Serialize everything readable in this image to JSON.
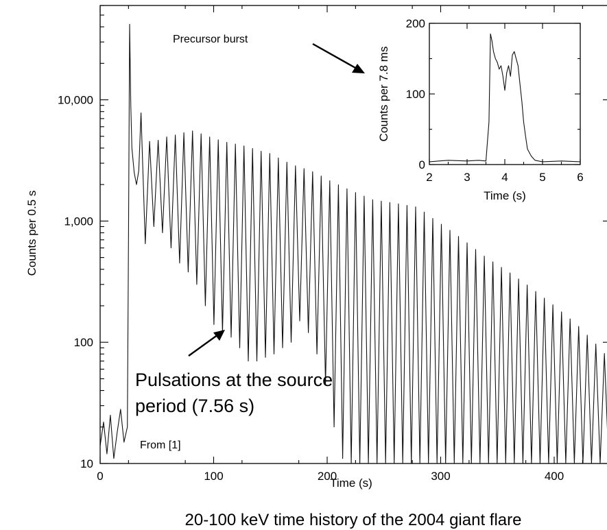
{
  "chart_data": [
    {
      "type": "line",
      "title": "",
      "xlabel": "Time (s)",
      "ylabel": "Counts per 0.5 s",
      "xlim": [
        0,
        450
      ],
      "ylim": [
        10,
        60000
      ],
      "yscale": "log",
      "grid": false,
      "x_ticks": [
        0,
        100,
        200,
        300,
        400
      ],
      "x_tick_labels": [
        "0",
        "100",
        "200",
        "300",
        "400"
      ],
      "y_ticks": [
        10,
        100,
        1000,
        10000
      ],
      "y_tick_labels": [
        "10",
        "100",
        "1,000",
        "10,000"
      ],
      "series": [
        {
          "x": [
            0,
            3,
            6,
            9,
            12,
            15,
            18,
            21,
            24,
            25,
            26,
            27,
            28,
            30,
            32,
            34,
            36,
            38,
            40,
            45,
            50,
            60,
            70,
            80,
            90,
            100,
            110,
            120,
            130,
            140,
            150,
            160,
            170,
            180,
            190,
            200,
            220,
            240,
            260,
            280,
            290,
            300,
            320,
            340,
            360,
            380,
            400,
            420,
            440,
            450
          ],
          "y": [
            14,
            22,
            12,
            25,
            11,
            18,
            28,
            15,
            20,
            800,
            42000,
            9000,
            4000,
            2500,
            2000,
            2600,
            7800,
            2000,
            4400,
            4600,
            4600,
            5000,
            5200,
            5600,
            5200,
            4800,
            4500,
            4300,
            4100,
            3800,
            3600,
            3200,
            2900,
            2700,
            2500,
            2200,
            1800,
            1500,
            1400,
            1300,
            1100,
            950,
            700,
            500,
            380,
            280,
            200,
            140,
            90,
            70
          ],
          "troughs_y": [
            650,
            900,
            800,
            600,
            450,
            380,
            300,
            200,
            140,
            120,
            110,
            90,
            70,
            70,
            75,
            80,
            90,
            100,
            150,
            120,
            80,
            45,
            20,
            11,
            10,
            10,
            10,
            10,
            10,
            10,
            10,
            10,
            10,
            10
          ]
        }
      ],
      "annotations": [
        {
          "text_lines": [
            "Pulsations at the source",
            "period (7.56 s)"
          ],
          "points_to_x": 110,
          "points_to_y": 130
        },
        {
          "text": "From [1]"
        }
      ]
    },
    {
      "type": "line",
      "title": "",
      "xlabel": "Time (s)",
      "ylabel": "Counts per 7.8 ms",
      "xlim": [
        2,
        6
      ],
      "ylim": [
        0,
        200
      ],
      "grid": false,
      "x_ticks": [
        2,
        3,
        4,
        5,
        6
      ],
      "x_tick_labels": [
        "2",
        "3",
        "4",
        "5",
        "6"
      ],
      "y_ticks": [
        0,
        100,
        200
      ],
      "y_tick_labels": [
        "0",
        "100",
        "200"
      ],
      "series": [
        {
          "x": [
            2.0,
            2.5,
            3.0,
            3.3,
            3.5,
            3.58,
            3.62,
            3.66,
            3.7,
            3.75,
            3.8,
            3.85,
            3.9,
            3.95,
            4.0,
            4.05,
            4.1,
            4.15,
            4.2,
            4.25,
            4.3,
            4.35,
            4.4,
            4.45,
            4.5,
            4.55,
            4.6,
            4.7,
            4.8,
            5.0,
            5.5,
            6.0
          ],
          "y": [
            4,
            6,
            5,
            6,
            5,
            60,
            185,
            175,
            160,
            150,
            145,
            135,
            140,
            125,
            105,
            130,
            140,
            125,
            155,
            160,
            150,
            140,
            115,
            90,
            60,
            40,
            22,
            12,
            6,
            4,
            5,
            4
          ]
        }
      ],
      "annotations": [
        {
          "text": "Precursor burst"
        }
      ]
    }
  ],
  "caption": "20-100 keV time history of the 2004 giant flare",
  "colors": {
    "trace": "#111111",
    "background": "#ffffff",
    "axes": "#000000"
  }
}
